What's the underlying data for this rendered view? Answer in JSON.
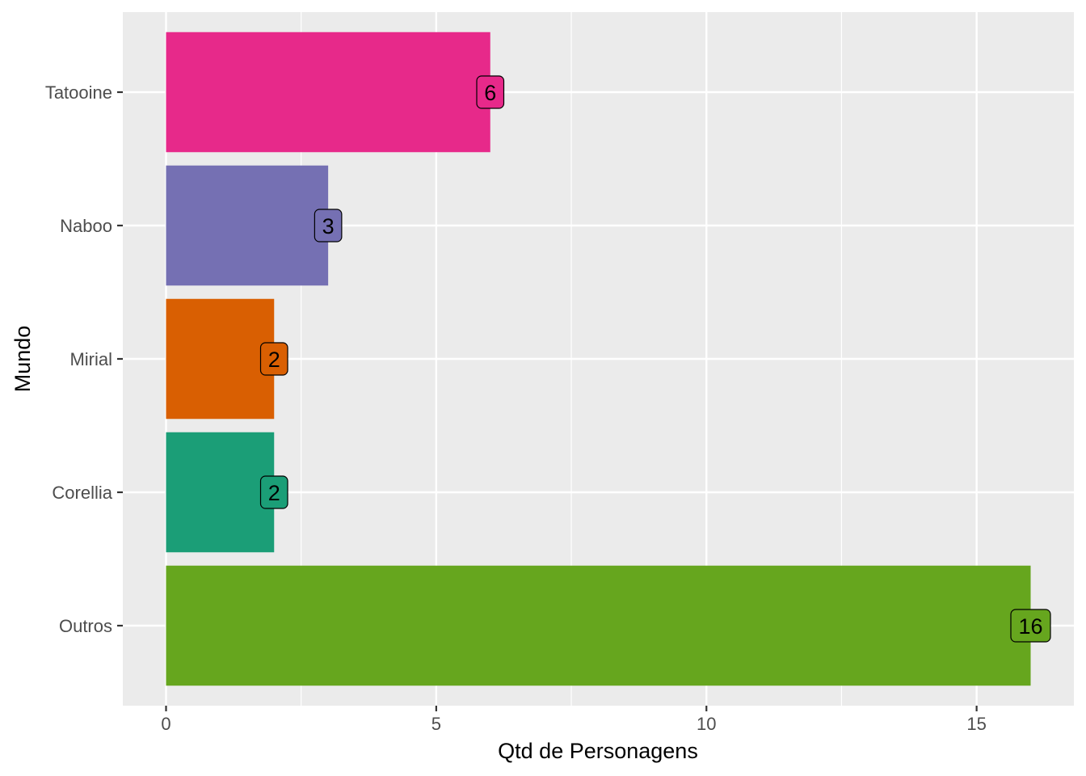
{
  "chart_data": {
    "type": "bar",
    "orientation": "horizontal",
    "categories": [
      "Outros",
      "Corellia",
      "Mirial",
      "Naboo",
      "Tatooine"
    ],
    "values": [
      16,
      2,
      2,
      3,
      6
    ],
    "data_labels": [
      "16",
      "2",
      "2",
      "3",
      "6"
    ],
    "colors": [
      "#66A61E",
      "#1B9E77",
      "#D95F02",
      "#7570B3",
      "#E7298A"
    ],
    "xlabel": "Qtd de Personagens",
    "ylabel": "Mundo",
    "xlim": [
      -0.8,
      16.8
    ],
    "xticks": [
      0,
      5,
      10,
      15
    ],
    "xtick_labels": [
      "0",
      "5",
      "10",
      "15"
    ],
    "grid": true,
    "panel_background": "#EBEBEB",
    "grid_color": "#FFFFFF",
    "legend": "none"
  }
}
